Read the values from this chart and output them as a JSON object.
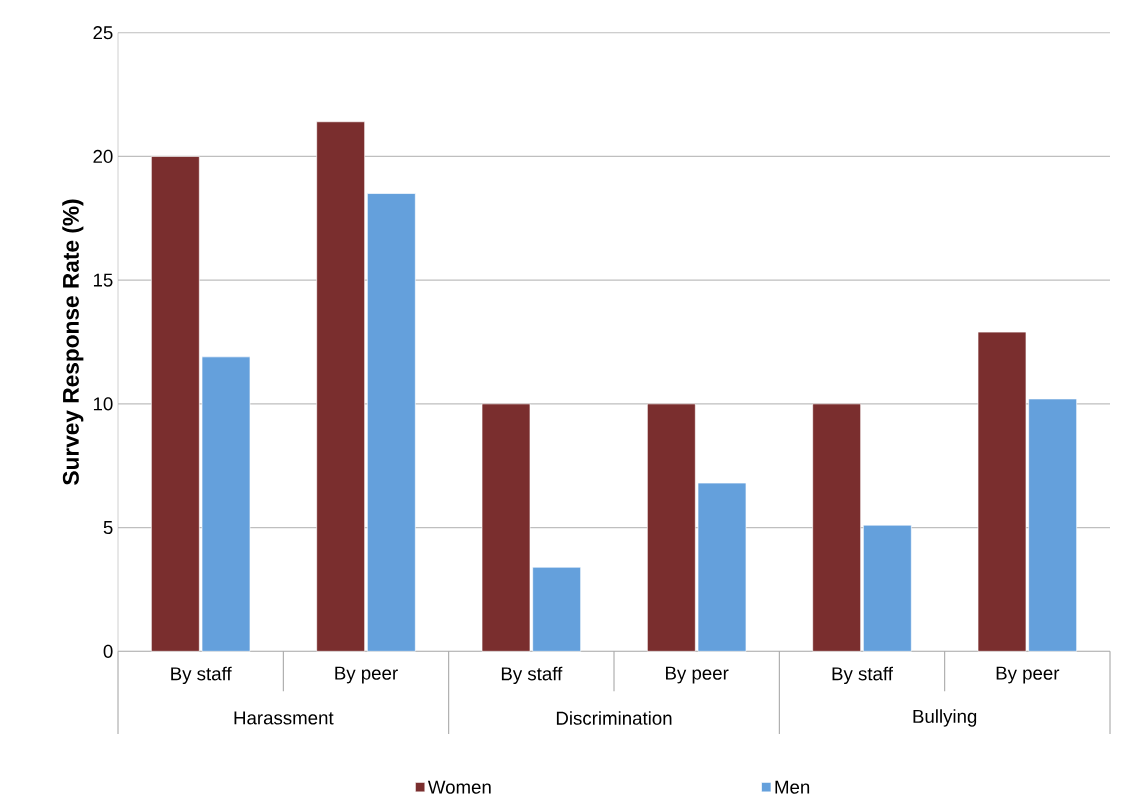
{
  "chart_data": {
    "type": "bar",
    "ylabel": "Survey Response Rate (%)",
    "categories": [
      "By staff",
      "By peer",
      "By staff",
      "By peer",
      "By staff",
      "By peer"
    ],
    "annotations": [
      "Harassment",
      "Discrimination",
      "Bullying"
    ],
    "series": [
      {
        "name": "Women",
        "color": "#7a2e2e",
        "values": [
          20,
          21.4,
          10,
          10,
          10,
          12.9
        ]
      },
      {
        "name": "Men",
        "color": "#64a0dc",
        "values": [
          11.9,
          18.5,
          3.4,
          6.8,
          5.1,
          10.2
        ]
      }
    ],
    "ylim": [
      0,
      25
    ],
    "yticks": [
      0,
      5,
      10,
      15,
      20,
      25
    ],
    "grid": "y",
    "legend": "bottom"
  }
}
